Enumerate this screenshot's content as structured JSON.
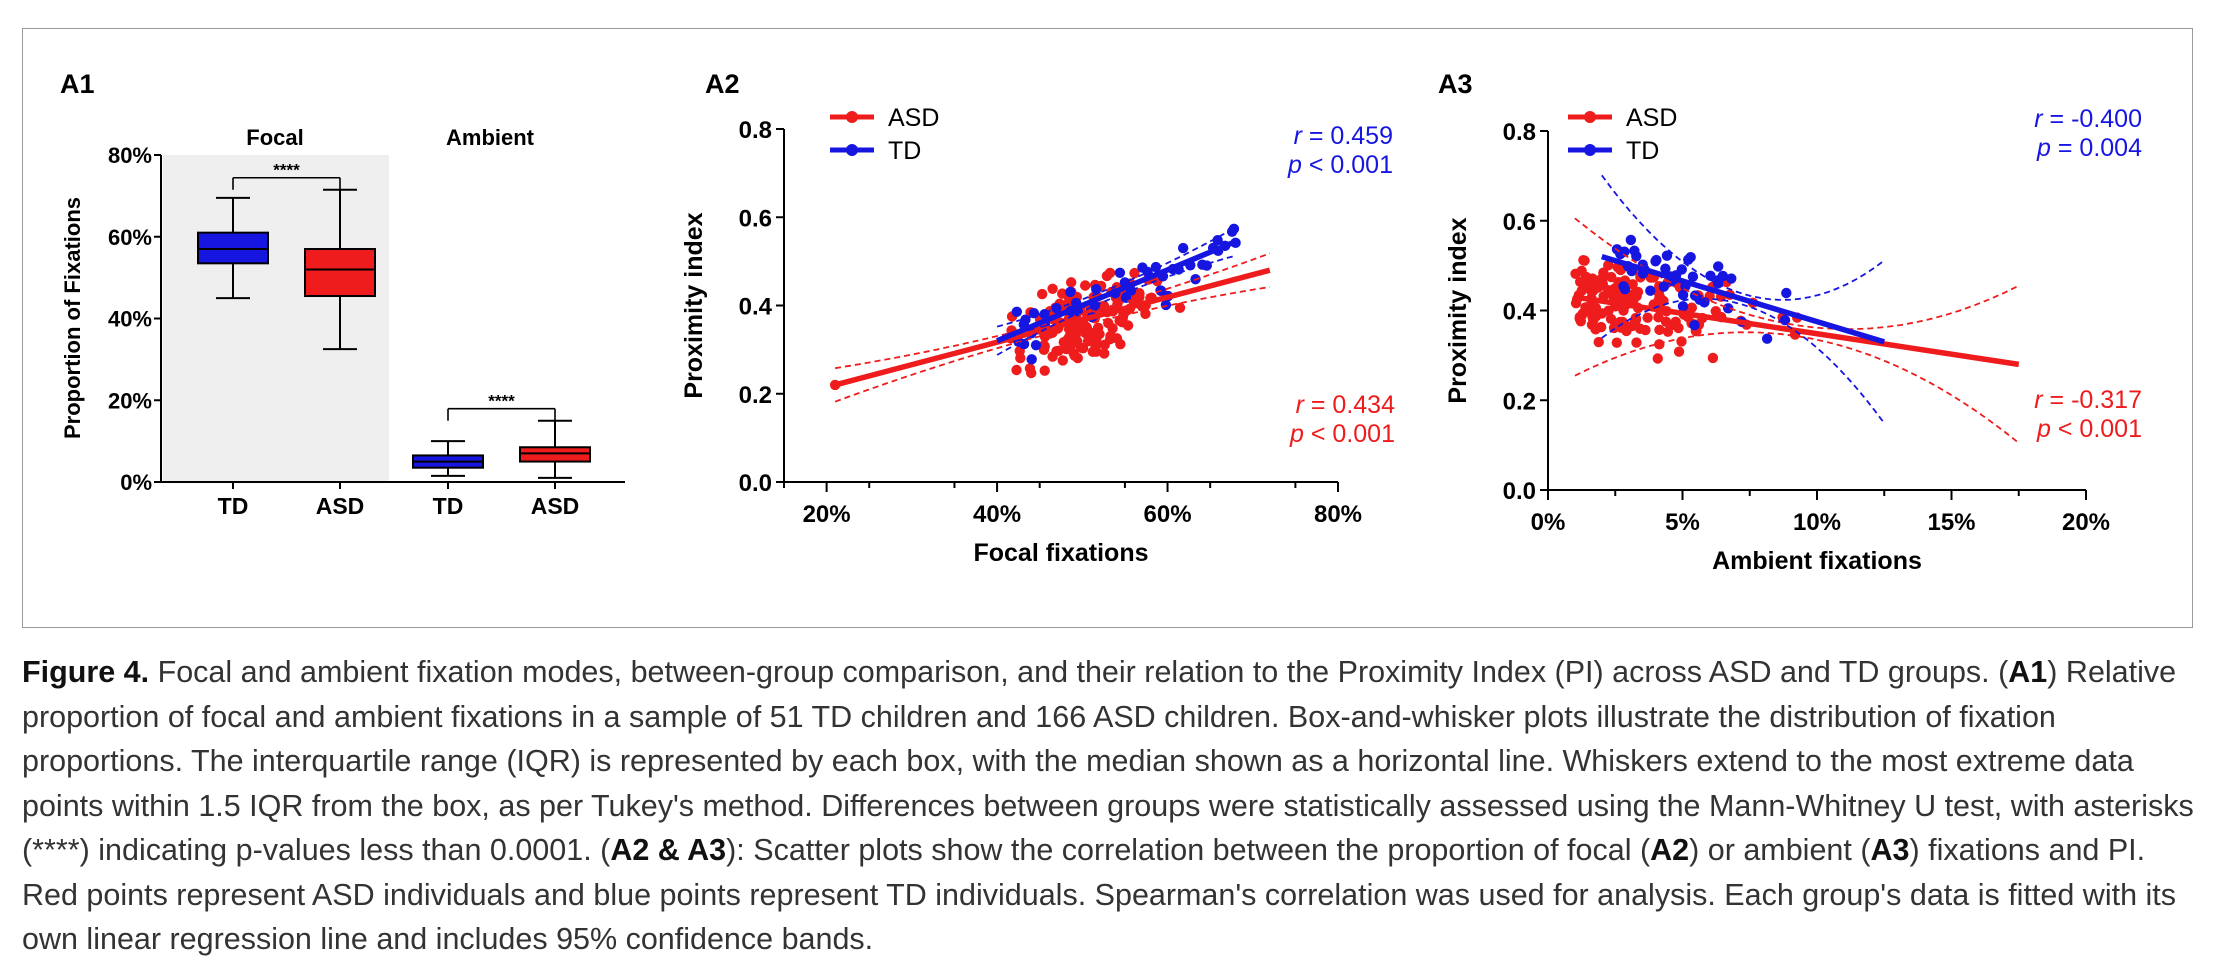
{
  "colors": {
    "asd": "#ee1c1c",
    "td": "#1616e0",
    "bg": "#efefef",
    "frame": "#9a9a9a"
  },
  "chart_data": [
    {
      "panel": "A1",
      "type": "box",
      "ylabel": "Proportion of Fixations",
      "yticks": [
        "0%",
        "20%",
        "40%",
        "60%",
        "80%"
      ],
      "ylim": [
        0,
        80
      ],
      "groups": [
        {
          "label": "Focal",
          "shaded": true,
          "significance": "****",
          "boxes": [
            {
              "category": "TD",
              "series": "TD",
              "min": 45,
              "q1": 53.5,
              "median": 57,
              "q3": 61,
              "max": 69.5
            },
            {
              "category": "ASD",
              "series": "ASD",
              "min": 32.5,
              "q1": 45.5,
              "median": 52,
              "q3": 57,
              "max": 71.5
            }
          ]
        },
        {
          "label": "Ambient",
          "shaded": false,
          "significance": "****",
          "boxes": [
            {
              "category": "TD",
              "series": "TD",
              "min": 1.5,
              "q1": 3.5,
              "median": 5,
              "q3": 6.5,
              "max": 10
            },
            {
              "category": "ASD",
              "series": "ASD",
              "min": 1,
              "q1": 5,
              "median": 7,
              "q3": 8.5,
              "max": 15
            }
          ]
        }
      ]
    },
    {
      "panel": "A2",
      "type": "scatter",
      "xlabel": "Focal fixations",
      "ylabel": "Proximity index",
      "xlim": [
        15,
        80
      ],
      "ylim": [
        0,
        0.8
      ],
      "xticks": [
        "20%",
        "40%",
        "60%",
        "80%"
      ],
      "yticks": [
        "0.0",
        "0.2",
        "0.4",
        "0.6",
        "0.8"
      ],
      "legend": [
        "ASD",
        "TD"
      ],
      "legend_position": "top-left",
      "series": [
        {
          "name": "ASD",
          "fit": {
            "x0": 21,
            "y0": 0.22,
            "x1": 72,
            "y1": 0.48
          },
          "r_text": "0.434",
          "p_text": "< 0.001"
        },
        {
          "name": "TD",
          "fit": {
            "x0": 40,
            "y0": 0.32,
            "x1": 68,
            "y1": 0.545
          },
          "r_text": "0.459",
          "p_text": "< 0.001"
        }
      ]
    },
    {
      "panel": "A3",
      "type": "scatter",
      "xlabel": "Ambient fixations",
      "ylabel": "Proximity index",
      "xlim": [
        0,
        20
      ],
      "ylim": [
        0,
        0.8
      ],
      "xticks": [
        "0%",
        "5%",
        "10%",
        "15%",
        "20%"
      ],
      "yticks": [
        "0.0",
        "0.2",
        "0.4",
        "0.6",
        "0.8"
      ],
      "legend": [
        "ASD",
        "TD"
      ],
      "legend_position": "top-left",
      "series": [
        {
          "name": "ASD",
          "fit": {
            "x0": 1,
            "y0": 0.43,
            "x1": 17.5,
            "y1": 0.28
          },
          "r_text": "-0.317",
          "p_text": "< 0.001"
        },
        {
          "name": "TD",
          "fit": {
            "x0": 2,
            "y0": 0.52,
            "x1": 12.5,
            "y1": 0.33
          },
          "r_text": "-0.400",
          "p_text": "= 0.004"
        }
      ]
    }
  ],
  "caption": {
    "figure_label": "Figure 4.",
    "text_1": " Focal and ambient fixation modes, between-group comparison, and their relation to the Proximity Index (PI) across ASD and TD groups. (",
    "bold_a1": "A1",
    "text_2": ") Relative proportion of focal and ambient fixations in a sample of 51 TD children and 166 ASD children. Box-and-whisker plots illustrate the distribution of fixation proportions. The interquartile range (IQR) is represented by each box, with the median shown as a horizontal line. Whiskers extend to the most extreme data points within 1.5 IQR from the box, as per Tukey's method. Differences between groups were statistically assessed using the Mann-Whitney U test, with asterisks (****) indicating p-values less than 0.0001. (",
    "bold_a2a3": "A2 & A3",
    "text_3": "): Scatter plots show the correlation between the proportion of focal (",
    "bold_a2": "A2",
    "text_4": ") or ambient (",
    "bold_a3": "A3",
    "text_5": ") fixations and PI. Red points represent ASD individuals and blue points represent TD individuals. Spearman's correlation was used for analysis. Each group's data is fitted with its own linear regression line and includes 95% confidence bands."
  }
}
